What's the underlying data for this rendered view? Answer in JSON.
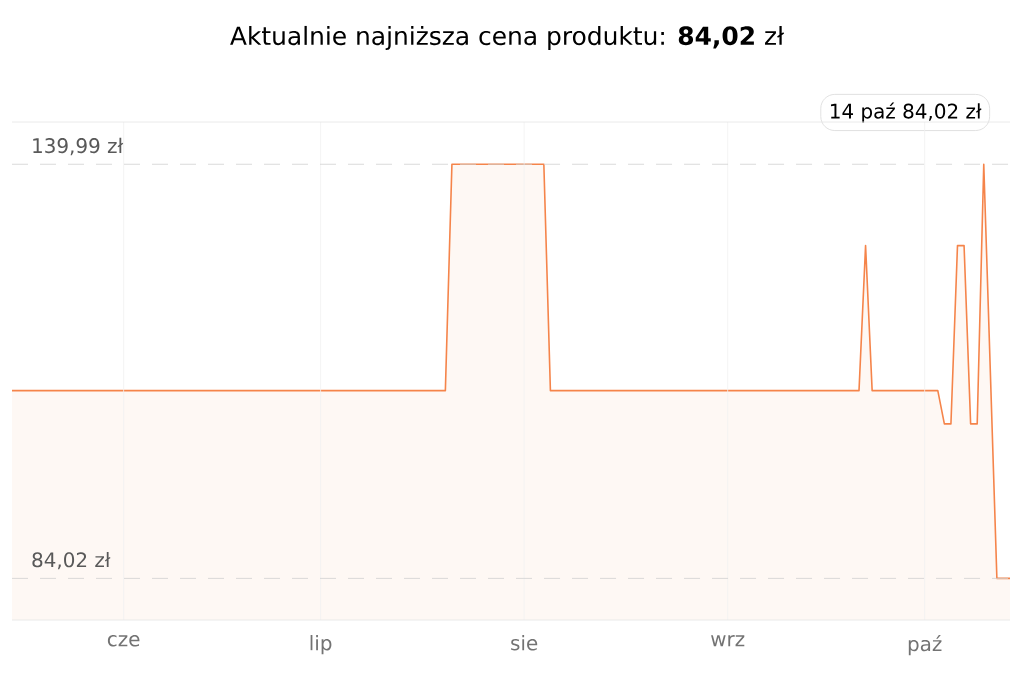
{
  "chart_data": {
    "type": "area",
    "title": "Aktualnie najniższa cena produktu: **84,02** zł",
    "categories": [
      null,
      null,
      null,
      null,
      null,
      null,
      null,
      null,
      null,
      null,
      null,
      null,
      null,
      null,
      null,
      null,
      null,
      "cze",
      null,
      null,
      null,
      null,
      null,
      null,
      null,
      null,
      null,
      null,
      null,
      null,
      null,
      null,
      null,
      null,
      null,
      null,
      null,
      null,
      null,
      null,
      null,
      null,
      null,
      null,
      null,
      null,
      null,
      "lip",
      null,
      null,
      null,
      null,
      null,
      null,
      null,
      null,
      null,
      null,
      null,
      null,
      null,
      null,
      null,
      null,
      null,
      null,
      null,
      null,
      null,
      null,
      null,
      null,
      null,
      null,
      null,
      null,
      null,
      null,
      "sie",
      null,
      null,
      null,
      null,
      null,
      null,
      null,
      null,
      null,
      null,
      null,
      null,
      null,
      null,
      null,
      null,
      null,
      null,
      null,
      null,
      null,
      null,
      null,
      null,
      null,
      null,
      null,
      null,
      null,
      null,
      "wrz",
      null,
      null,
      null,
      null,
      null,
      null,
      null,
      null,
      null,
      null,
      null,
      null,
      null,
      null,
      null,
      null,
      null,
      null,
      null,
      null,
      null,
      null,
      null,
      null,
      null,
      null,
      null,
      null,
      null,
      "paź",
      null,
      null,
      null,
      null,
      null,
      null,
      null,
      null,
      null,
      null,
      null,
      null,
      null
    ],
    "values": [
      109.4,
      109.4,
      109.4,
      109.4,
      109.4,
      109.4,
      109.4,
      109.4,
      109.4,
      109.4,
      109.4,
      109.4,
      109.4,
      109.4,
      109.4,
      109.4,
      109.4,
      109.4,
      109.4,
      109.4,
      109.4,
      109.4,
      109.4,
      109.4,
      109.4,
      109.4,
      109.4,
      109.4,
      109.4,
      109.4,
      109.4,
      109.4,
      109.4,
      109.4,
      109.4,
      109.4,
      109.4,
      109.4,
      109.4,
      109.4,
      109.4,
      109.4,
      109.4,
      109.4,
      109.4,
      109.4,
      109.4,
      109.4,
      109.4,
      109.4,
      109.4,
      109.4,
      109.4,
      109.4,
      109.4,
      109.4,
      109.4,
      109.4,
      109.4,
      109.4,
      109.4,
      109.4,
      109.4,
      109.4,
      109.4,
      109.4,
      109.4,
      139.99,
      139.99,
      139.99,
      139.99,
      139.99,
      139.99,
      139.99,
      139.99,
      139.99,
      139.99,
      139.99,
      139.99,
      139.99,
      139.99,
      139.99,
      109.4,
      109.4,
      109.4,
      109.4,
      109.4,
      109.4,
      109.4,
      109.4,
      109.4,
      109.4,
      109.4,
      109.4,
      109.4,
      109.4,
      109.4,
      109.4,
      109.4,
      109.4,
      109.4,
      109.4,
      109.4,
      109.4,
      109.4,
      109.4,
      109.4,
      109.4,
      109.4,
      109.4,
      109.4,
      109.4,
      109.4,
      109.4,
      109.4,
      109.4,
      109.4,
      109.4,
      109.4,
      109.4,
      109.4,
      109.4,
      109.4,
      109.4,
      109.4,
      109.4,
      109.4,
      109.4,
      109.4,
      109.4,
      129,
      109.4,
      109.4,
      109.4,
      109.4,
      109.4,
      109.4,
      109.4,
      109.4,
      109.4,
      109.4,
      109.4,
      104.9,
      104.9,
      129,
      129,
      104.9,
      104.9,
      139.99,
      112,
      84.02,
      84.02,
      84.02
    ],
    "color": "#f5844a",
    "ylim": [
      78.4,
      145.7
    ],
    "yticks": [
      {
        "value": 84.02,
        "label": "84,02 zł"
      },
      {
        "value": 139.99,
        "label": "139,99 zł"
      }
    ],
    "grid": true,
    "annotations": [
      "14 paź 84,02 zł"
    ]
  }
}
